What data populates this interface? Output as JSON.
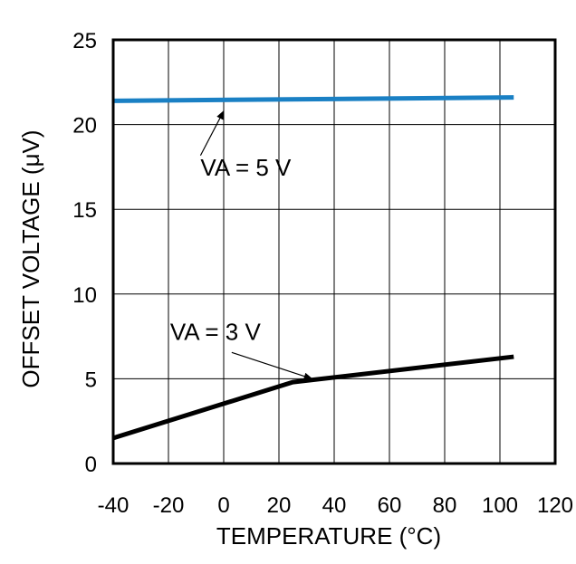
{
  "chart_data": {
    "type": "line",
    "title": "",
    "xlabel": "TEMPERATURE (°C)",
    "ylabel": "OFFSET VOLTAGE (μV)",
    "xlim": [
      -40,
      120
    ],
    "ylim": [
      0,
      25
    ],
    "xticks": [
      -40,
      -20,
      0,
      20,
      40,
      60,
      80,
      100,
      120
    ],
    "yticks": [
      0,
      5,
      10,
      15,
      20,
      25
    ],
    "grid": true,
    "series": [
      {
        "name": "VA = 5 V",
        "color": "#1a80c4",
        "x": [
          -40,
          105
        ],
        "y": [
          21.4,
          21.6
        ]
      },
      {
        "name": "VA = 3 V",
        "color": "#000000",
        "x": [
          -40,
          25,
          105
        ],
        "y": [
          1.5,
          4.8,
          6.3
        ]
      }
    ],
    "annotations": [
      {
        "text": "VA = 5 V",
        "x": 8,
        "y": 17,
        "arrow_to": [
          0,
          20.8
        ]
      },
      {
        "text": "VA = 3 V",
        "x": -3,
        "y": 7.3,
        "arrow_to": [
          32,
          5.0
        ]
      }
    ]
  }
}
